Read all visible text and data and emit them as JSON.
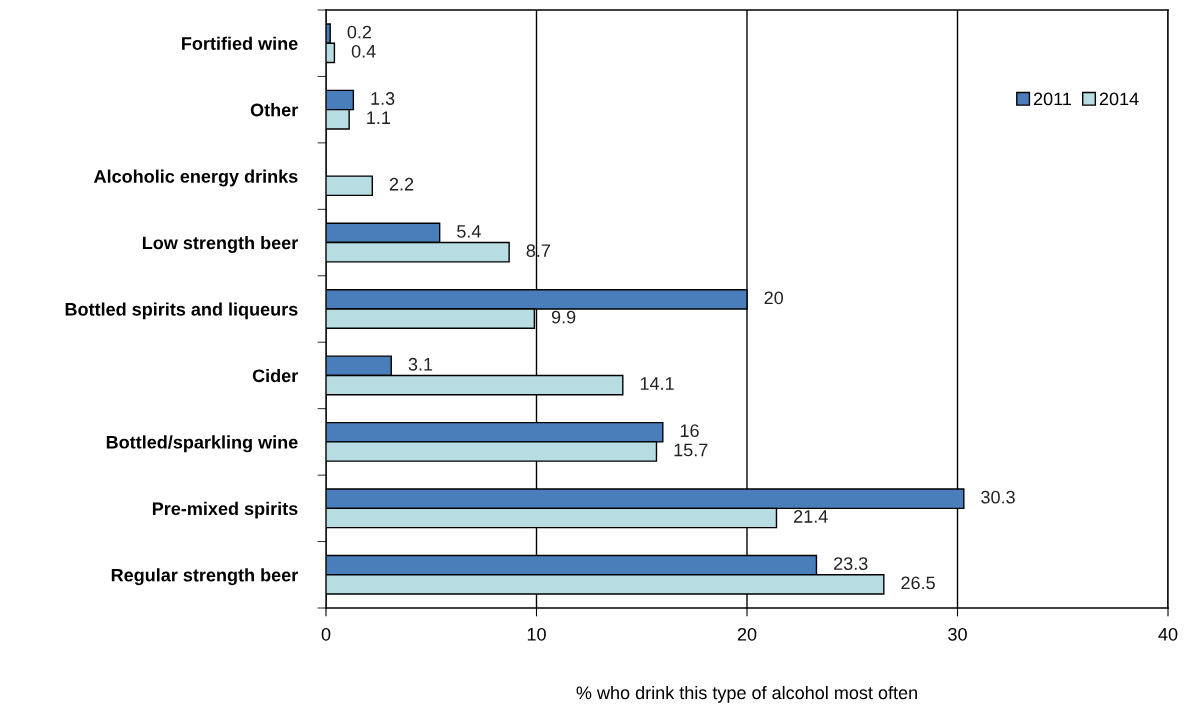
{
  "chart_data": {
    "type": "bar",
    "orientation": "horizontal",
    "xlabel": "% who drink this type of alcohol most often",
    "categories": [
      "Fortified wine",
      "Other",
      "Alcoholic energy drinks",
      "Low strength beer",
      "Bottled spirits and liqueurs",
      "Cider",
      "Bottled/sparkling wine",
      "Pre-mixed spirits",
      "Regular strength beer"
    ],
    "series": [
      {
        "name": "2011",
        "color": "#4a7ebb",
        "values": [
          0.2,
          1.3,
          null,
          5.4,
          20,
          3.1,
          16,
          30.3,
          23.3
        ]
      },
      {
        "name": "2014",
        "color": "#b7dde3",
        "values": [
          0.4,
          1.1,
          2.2,
          8.7,
          9.9,
          14.1,
          15.7,
          21.4,
          26.5
        ]
      }
    ],
    "xlim": [
      0,
      40
    ],
    "xticks": [
      0,
      10,
      20,
      30,
      40
    ],
    "grid": "x",
    "legend": "top right",
    "data_labels": true
  }
}
